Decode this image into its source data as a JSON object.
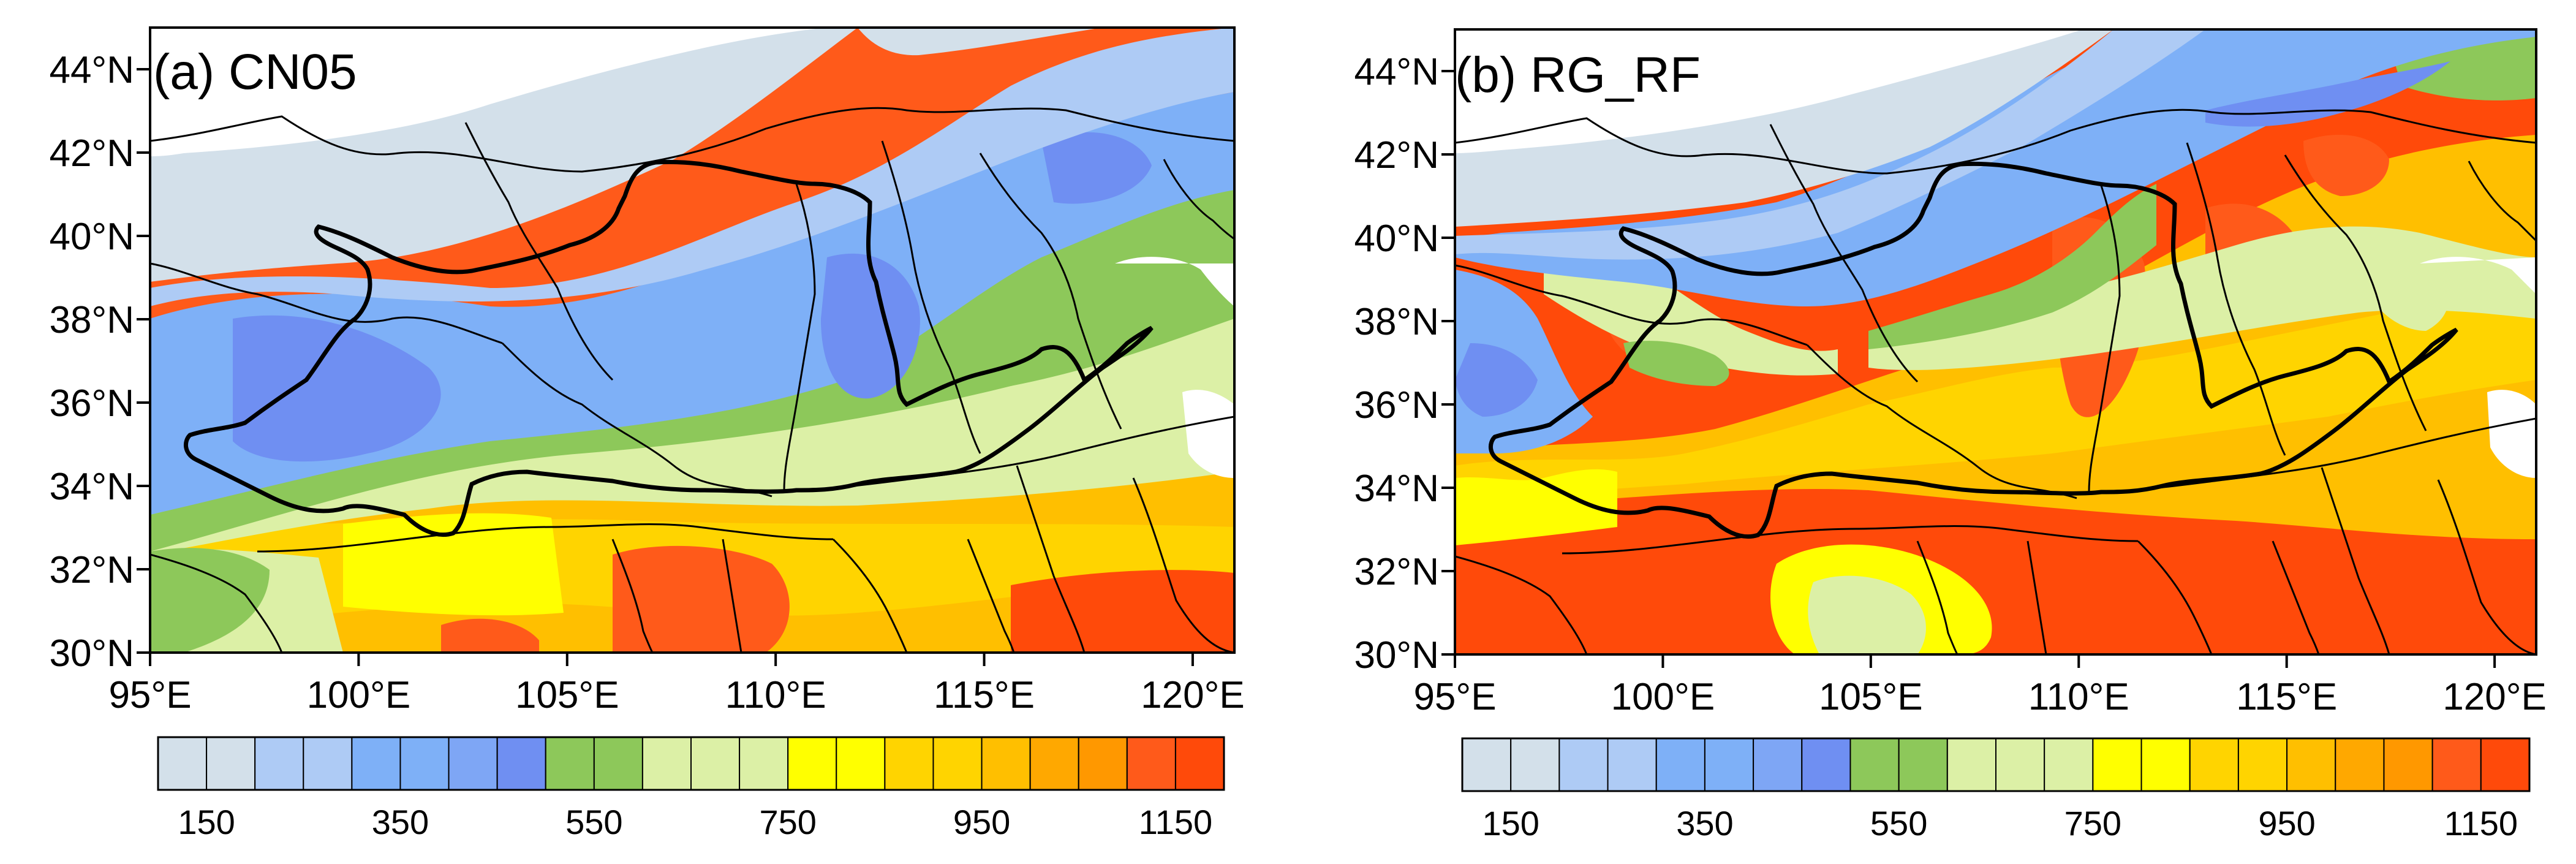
{
  "panels": [
    {
      "id": "a",
      "label": "(a) CN05",
      "lon_range": [
        95,
        121
      ],
      "lat_range": [
        30,
        45
      ]
    },
    {
      "id": "b",
      "label": "(b) RG_RF",
      "lon_range": [
        95,
        121
      ],
      "lat_range": [
        30,
        45
      ]
    }
  ],
  "lon_ticks": [
    "95°E",
    "100°E",
    "105°E",
    "110°E",
    "115°E",
    "120°E"
  ],
  "lat_ticks": [
    "30°N",
    "32°N",
    "34°N",
    "36°N",
    "38°N",
    "40°N",
    "42°N",
    "44°N"
  ],
  "colorbar": {
    "colors": [
      "#d3e0ea",
      "#d3e0ea",
      "#aecbf5",
      "#aecbf5",
      "#7eb0f7",
      "#7eb0f7",
      "#7ea6f5",
      "#6f8ff2",
      "#8dc85a",
      "#8dc85a",
      "#dcf0a6",
      "#dcf0a6",
      "#dcf0a6",
      "#ffff00",
      "#ffff00",
      "#ffd400",
      "#ffd400",
      "#ffbf00",
      "#ffa800",
      "#ff9800",
      "#ff5a1a",
      "#ff4a0a"
    ],
    "labels": [
      "150",
      "350",
      "550",
      "750",
      "950",
      "1150"
    ]
  }
}
